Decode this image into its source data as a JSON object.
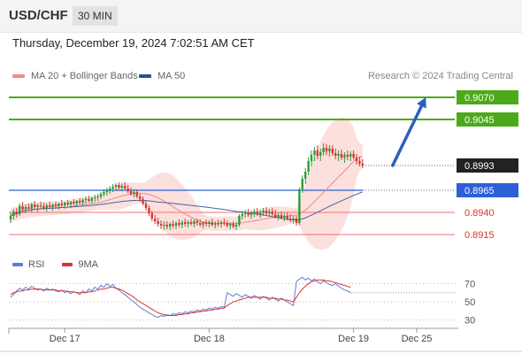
{
  "header": {
    "symbol": "USD/CHF",
    "timeframe": "30 MIN",
    "datetime": "Thursday, December 19, 2024 7:02:51 AM CET"
  },
  "legend": {
    "items": [
      {
        "label": "MA 20 + Bollinger Bands",
        "color": "#f28b82"
      },
      {
        "label": "MA 50",
        "color": "#2a4f8f"
      }
    ],
    "copyright": "Research © 2024 Trading Central"
  },
  "rsi_legend": {
    "items": [
      {
        "label": "RSI",
        "color": "#5b7fd4"
      },
      {
        "label": "9MA",
        "color": "#e0322f"
      }
    ]
  },
  "chart_data": {
    "type": "candlestick",
    "ylim": [
      0.8905,
      0.9085
    ],
    "x_ticks": [
      {
        "label": "Dec 17",
        "index": 18
      },
      {
        "label": "Dec 18",
        "index": 66
      },
      {
        "label": "Dec 19",
        "index": 114
      },
      {
        "label": "Dec 25",
        "index": 135
      }
    ],
    "levels": [
      {
        "value": 0.907,
        "label": "0.9070",
        "kind": "resistance"
      },
      {
        "value": 0.9045,
        "label": "0.9045",
        "kind": "resistance"
      },
      {
        "value": 0.8993,
        "label": "0.8993",
        "kind": "current"
      },
      {
        "value": 0.8965,
        "label": "0.8965",
        "kind": "pivot"
      },
      {
        "value": 0.894,
        "label": "0.8940",
        "kind": "support"
      },
      {
        "value": 0.8915,
        "label": "0.8915",
        "kind": "support"
      }
    ],
    "forecast_arrow": {
      "from_index": 127,
      "from_value": 0.8993,
      "to_index": 138,
      "to_value": 0.907
    },
    "candles": [
      [
        0.8932,
        0.894,
        0.8928,
        0.8936
      ],
      [
        0.8936,
        0.8944,
        0.8932,
        0.8941
      ],
      [
        0.8941,
        0.8945,
        0.8934,
        0.8938
      ],
      [
        0.8938,
        0.895,
        0.8936,
        0.8947
      ],
      [
        0.8947,
        0.8952,
        0.894,
        0.8943
      ],
      [
        0.8943,
        0.8949,
        0.8939,
        0.8946
      ],
      [
        0.8946,
        0.895,
        0.8942,
        0.8944
      ],
      [
        0.8944,
        0.8951,
        0.894,
        0.8949
      ],
      [
        0.8949,
        0.8953,
        0.8944,
        0.8946
      ],
      [
        0.8946,
        0.895,
        0.8941,
        0.8948
      ],
      [
        0.8948,
        0.8952,
        0.8944,
        0.8947
      ],
      [
        0.8947,
        0.8951,
        0.8943,
        0.8945
      ],
      [
        0.8945,
        0.895,
        0.8941,
        0.8948
      ],
      [
        0.8948,
        0.8952,
        0.8945,
        0.8946
      ],
      [
        0.8946,
        0.895,
        0.8942,
        0.8949
      ],
      [
        0.8949,
        0.8952,
        0.8944,
        0.8947
      ],
      [
        0.8947,
        0.8951,
        0.8943,
        0.895
      ],
      [
        0.895,
        0.8954,
        0.8946,
        0.8948
      ],
      [
        0.8948,
        0.8952,
        0.8944,
        0.8951
      ],
      [
        0.8951,
        0.8954,
        0.8947,
        0.8949
      ],
      [
        0.8949,
        0.8953,
        0.8945,
        0.8952
      ],
      [
        0.8952,
        0.8955,
        0.8948,
        0.895
      ],
      [
        0.895,
        0.8954,
        0.8946,
        0.8953
      ],
      [
        0.8953,
        0.8956,
        0.8949,
        0.8951
      ],
      [
        0.8951,
        0.8956,
        0.8948,
        0.8954
      ],
      [
        0.8954,
        0.8958,
        0.895,
        0.8955
      ],
      [
        0.8955,
        0.8959,
        0.8951,
        0.8953
      ],
      [
        0.8953,
        0.8958,
        0.895,
        0.8956
      ],
      [
        0.8956,
        0.896,
        0.8952,
        0.8957
      ],
      [
        0.8957,
        0.8961,
        0.8953,
        0.8958
      ],
      [
        0.8958,
        0.8963,
        0.8955,
        0.8961
      ],
      [
        0.8961,
        0.8966,
        0.8958,
        0.8963
      ],
      [
        0.8963,
        0.8968,
        0.8959,
        0.8965
      ],
      [
        0.8965,
        0.897,
        0.8961,
        0.8967
      ],
      [
        0.8967,
        0.8972,
        0.8963,
        0.8969
      ],
      [
        0.8969,
        0.8973,
        0.8965,
        0.8971
      ],
      [
        0.8971,
        0.8974,
        0.8966,
        0.8968
      ],
      [
        0.8968,
        0.8973,
        0.8964,
        0.897
      ],
      [
        0.897,
        0.8974,
        0.8966,
        0.8967
      ],
      [
        0.8967,
        0.8971,
        0.8962,
        0.8964
      ],
      [
        0.8964,
        0.8968,
        0.8959,
        0.8961
      ],
      [
        0.8961,
        0.8966,
        0.8957,
        0.8963
      ],
      [
        0.8963,
        0.8966,
        0.8956,
        0.8958
      ],
      [
        0.8958,
        0.8961,
        0.8952,
        0.8955
      ],
      [
        0.8955,
        0.8958,
        0.8948,
        0.895
      ],
      [
        0.895,
        0.8953,
        0.8942,
        0.8945
      ],
      [
        0.8945,
        0.8948,
        0.8936,
        0.8939
      ],
      [
        0.8939,
        0.8942,
        0.893,
        0.8933
      ],
      [
        0.8933,
        0.8937,
        0.8927,
        0.893
      ],
      [
        0.893,
        0.8934,
        0.8924,
        0.8927
      ],
      [
        0.8927,
        0.8931,
        0.8921,
        0.8925
      ],
      [
        0.8925,
        0.893,
        0.892,
        0.8926
      ],
      [
        0.8926,
        0.893,
        0.8921,
        0.8924
      ],
      [
        0.8924,
        0.8929,
        0.892,
        0.8927
      ],
      [
        0.8927,
        0.8931,
        0.8922,
        0.8925
      ],
      [
        0.8925,
        0.893,
        0.8921,
        0.8928
      ],
      [
        0.8928,
        0.8932,
        0.8923,
        0.8926
      ],
      [
        0.8926,
        0.8931,
        0.8922,
        0.8929
      ],
      [
        0.8929,
        0.8933,
        0.8924,
        0.8927
      ],
      [
        0.8927,
        0.8931,
        0.8923,
        0.8929
      ],
      [
        0.8929,
        0.8933,
        0.8925,
        0.8927
      ],
      [
        0.8927,
        0.8932,
        0.8923,
        0.893
      ],
      [
        0.893,
        0.8933,
        0.8925,
        0.8928
      ],
      [
        0.8928,
        0.8932,
        0.8924,
        0.8926
      ],
      [
        0.8926,
        0.893,
        0.8922,
        0.8929
      ],
      [
        0.8929,
        0.8932,
        0.8924,
        0.8927
      ],
      [
        0.8927,
        0.8931,
        0.8923,
        0.8929
      ],
      [
        0.8929,
        0.8933,
        0.8924,
        0.8926
      ],
      [
        0.8926,
        0.893,
        0.8922,
        0.8928
      ],
      [
        0.8928,
        0.8932,
        0.8924,
        0.8927
      ],
      [
        0.8927,
        0.8931,
        0.8923,
        0.8929
      ],
      [
        0.8929,
        0.8933,
        0.8925,
        0.8928
      ],
      [
        0.8928,
        0.8931,
        0.8923,
        0.8925
      ],
      [
        0.8925,
        0.8929,
        0.8921,
        0.8927
      ],
      [
        0.8927,
        0.893,
        0.8922,
        0.8924
      ],
      [
        0.8924,
        0.8929,
        0.892,
        0.8926
      ],
      [
        0.8926,
        0.8938,
        0.8924,
        0.8936
      ],
      [
        0.8936,
        0.8942,
        0.8932,
        0.8938
      ],
      [
        0.8938,
        0.8943,
        0.8934,
        0.894
      ],
      [
        0.894,
        0.8944,
        0.8935,
        0.8937
      ],
      [
        0.8937,
        0.8942,
        0.8933,
        0.8939
      ],
      [
        0.8939,
        0.8944,
        0.8935,
        0.8941
      ],
      [
        0.8941,
        0.8945,
        0.8936,
        0.8938
      ],
      [
        0.8938,
        0.8943,
        0.8934,
        0.894
      ],
      [
        0.894,
        0.8945,
        0.8936,
        0.8942
      ],
      [
        0.8942,
        0.8946,
        0.8937,
        0.8939
      ],
      [
        0.8939,
        0.8944,
        0.8935,
        0.8941
      ],
      [
        0.8941,
        0.8945,
        0.8936,
        0.8938
      ],
      [
        0.8938,
        0.8943,
        0.8933,
        0.8935
      ],
      [
        0.8935,
        0.894,
        0.8931,
        0.8937
      ],
      [
        0.8937,
        0.8941,
        0.8932,
        0.8934
      ],
      [
        0.8934,
        0.8939,
        0.893,
        0.8936
      ],
      [
        0.8936,
        0.894,
        0.8931,
        0.8933
      ],
      [
        0.8933,
        0.8938,
        0.8929,
        0.8931
      ],
      [
        0.8931,
        0.8936,
        0.8927,
        0.8933
      ],
      [
        0.8933,
        0.8936,
        0.8925,
        0.8928
      ],
      [
        0.8928,
        0.8968,
        0.8926,
        0.8966
      ],
      [
        0.8966,
        0.8982,
        0.8962,
        0.8978
      ],
      [
        0.8978,
        0.899,
        0.8972,
        0.8986
      ],
      [
        0.8986,
        0.9002,
        0.8982,
        0.8998
      ],
      [
        0.8998,
        0.901,
        0.8992,
        0.9005
      ],
      [
        0.9005,
        0.9014,
        0.8998,
        0.901
      ],
      [
        0.901,
        0.9016,
        0.9,
        0.9004
      ],
      [
        0.9004,
        0.9012,
        0.8998,
        0.9008
      ],
      [
        0.9008,
        0.9018,
        0.9004,
        0.9013
      ],
      [
        0.9013,
        0.9017,
        0.9005,
        0.9009
      ],
      [
        0.9009,
        0.9016,
        0.9003,
        0.9012
      ],
      [
        0.9012,
        0.9016,
        0.9004,
        0.9007
      ],
      [
        0.9007,
        0.9012,
        0.9,
        0.9004
      ],
      [
        0.9004,
        0.901,
        0.8998,
        0.9006
      ],
      [
        0.9006,
        0.9011,
        0.8999,
        0.9002
      ],
      [
        0.9002,
        0.9008,
        0.8996,
        0.9005
      ],
      [
        0.9005,
        0.901,
        0.8999,
        0.9003
      ],
      [
        0.9003,
        0.9009,
        0.8998,
        0.9006
      ],
      [
        0.9006,
        0.901,
        0.9,
        0.9002
      ],
      [
        0.9002,
        0.9006,
        0.8994,
        0.8998
      ],
      [
        0.8998,
        0.9003,
        0.8992,
        0.8995
      ],
      [
        0.8995,
        0.9,
        0.899,
        0.8993
      ]
    ],
    "rsi_ylim": [
      20,
      85
    ],
    "rsi_levels": [
      70,
      50,
      30
    ],
    "rsi": [
      55,
      58,
      62,
      65,
      63,
      66,
      64,
      67,
      65,
      63,
      64,
      62,
      65,
      63,
      64,
      62,
      61,
      63,
      60,
      62,
      59,
      61,
      60,
      58,
      62,
      60,
      64,
      62,
      66,
      64,
      68,
      66,
      70,
      67,
      69,
      65,
      63,
      60,
      58,
      55,
      52,
      50,
      47,
      44,
      42,
      40,
      38,
      36,
      34,
      33,
      35,
      34,
      36,
      35,
      37,
      36,
      38,
      37,
      39,
      38,
      40,
      39,
      41,
      40,
      42,
      41,
      43,
      42,
      44,
      43,
      45,
      44,
      60,
      58,
      56,
      59,
      57,
      55,
      58,
      56,
      54,
      57,
      55,
      53,
      56,
      54,
      52,
      55,
      53,
      51,
      54,
      52,
      50,
      48,
      46,
      72,
      75,
      77,
      74,
      76,
      73,
      75,
      72,
      70,
      73,
      71,
      69,
      68,
      70,
      67,
      65,
      63,
      62,
      60
    ],
    "rsi_ma": [
      58,
      60,
      61,
      62,
      62,
      63,
      63,
      64,
      64,
      64,
      64,
      63,
      63,
      63,
      63,
      63,
      62,
      62,
      62,
      61,
      61,
      61,
      60,
      60,
      60,
      60,
      61,
      61,
      62,
      63,
      64,
      64,
      65,
      66,
      66,
      65,
      64,
      63,
      61,
      59,
      57,
      55,
      52,
      50,
      48,
      46,
      44,
      42,
      40,
      38,
      37,
      36,
      35,
      35,
      35,
      35,
      36,
      36,
      37,
      37,
      38,
      38,
      39,
      39,
      40,
      40,
      41,
      41,
      42,
      42,
      43,
      43,
      46,
      48,
      50,
      51,
      52,
      53,
      54,
      55,
      55,
      55,
      55,
      55,
      55,
      55,
      54,
      54,
      54,
      53,
      53,
      52,
      52,
      51,
      50,
      55,
      60,
      64,
      67,
      70,
      72,
      73,
      74,
      74,
      74,
      73,
      73,
      72,
      71,
      70,
      69,
      68,
      67,
      66
    ]
  }
}
